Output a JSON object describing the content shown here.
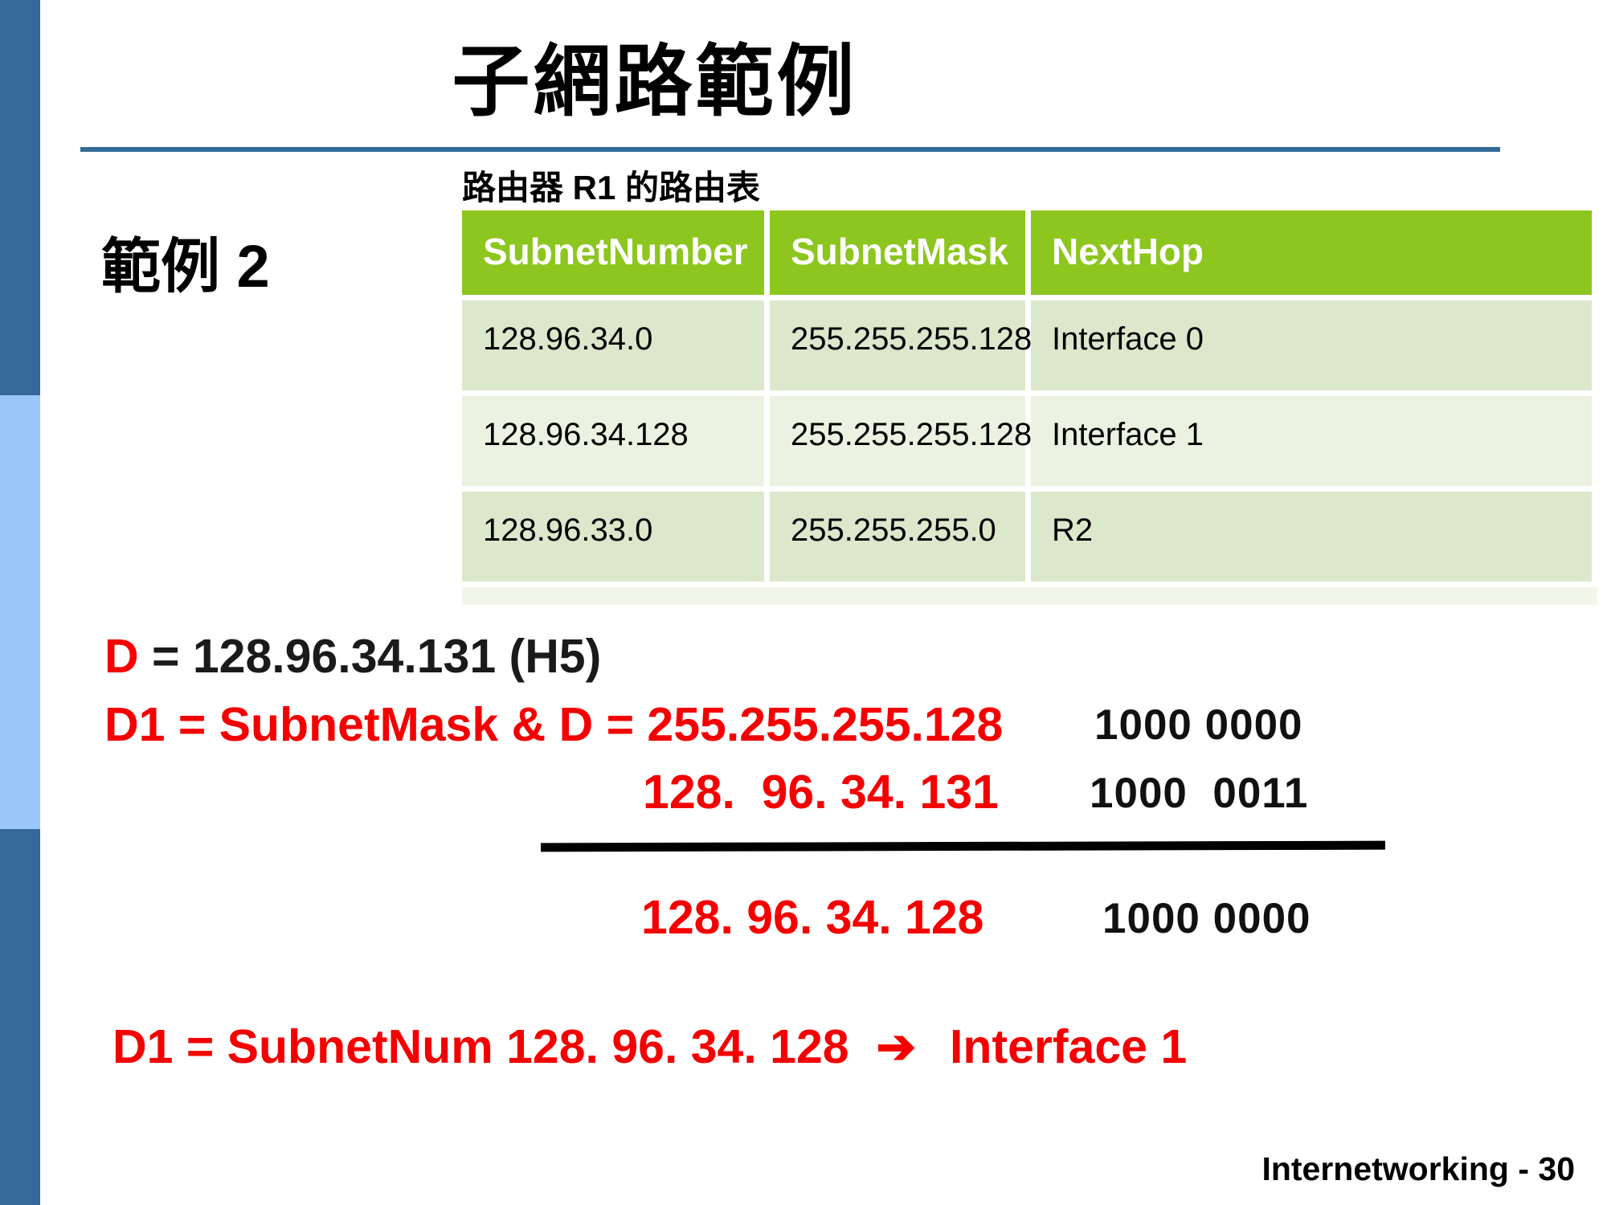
{
  "title": "子網路範例",
  "example_label": "範例 2",
  "table_caption": "路由器 R1 的路由表",
  "routing_table": {
    "headers": [
      "SubnetNumber",
      "SubnetMask",
      "NextHop"
    ],
    "rows": [
      [
        "128.96.34.0",
        "255.255.255.128",
        "Interface 0"
      ],
      [
        "128.96.34.128",
        "255.255.255.128",
        "Interface 1"
      ],
      [
        "128.96.33.0",
        "255.255.255.0",
        "R2"
      ]
    ]
  },
  "work": {
    "d_label": "D",
    "d_rest": " = 128.96.34.131 (H5)",
    "line2": "D1 = SubnetMask & D = 255.255.255.128",
    "line2_binary": "1000 0000",
    "line3": "128.  96. 34. 131",
    "line3_binary": "1000  0011",
    "line4": "128. 96. 34. 128",
    "line4_binary": "1000 0000",
    "result_prefix": "D1 = SubnetNum 128. 96. 34. 128",
    "result_arrow": "➔",
    "result_target": "Interface 1"
  },
  "footer": "Internetworking - 30",
  "colors": {
    "sidebar_dark_blue": "#35689B",
    "sidebar_light_blue": "#9AC9F9",
    "divider_blue": "#336B96",
    "table_header_green": "#8CC61E",
    "row_green_dark": "#DCE8CC",
    "row_green_light": "#EBF2E1",
    "table_bottom_strip": "#F2F7EA",
    "accent_red": "#F40000"
  }
}
